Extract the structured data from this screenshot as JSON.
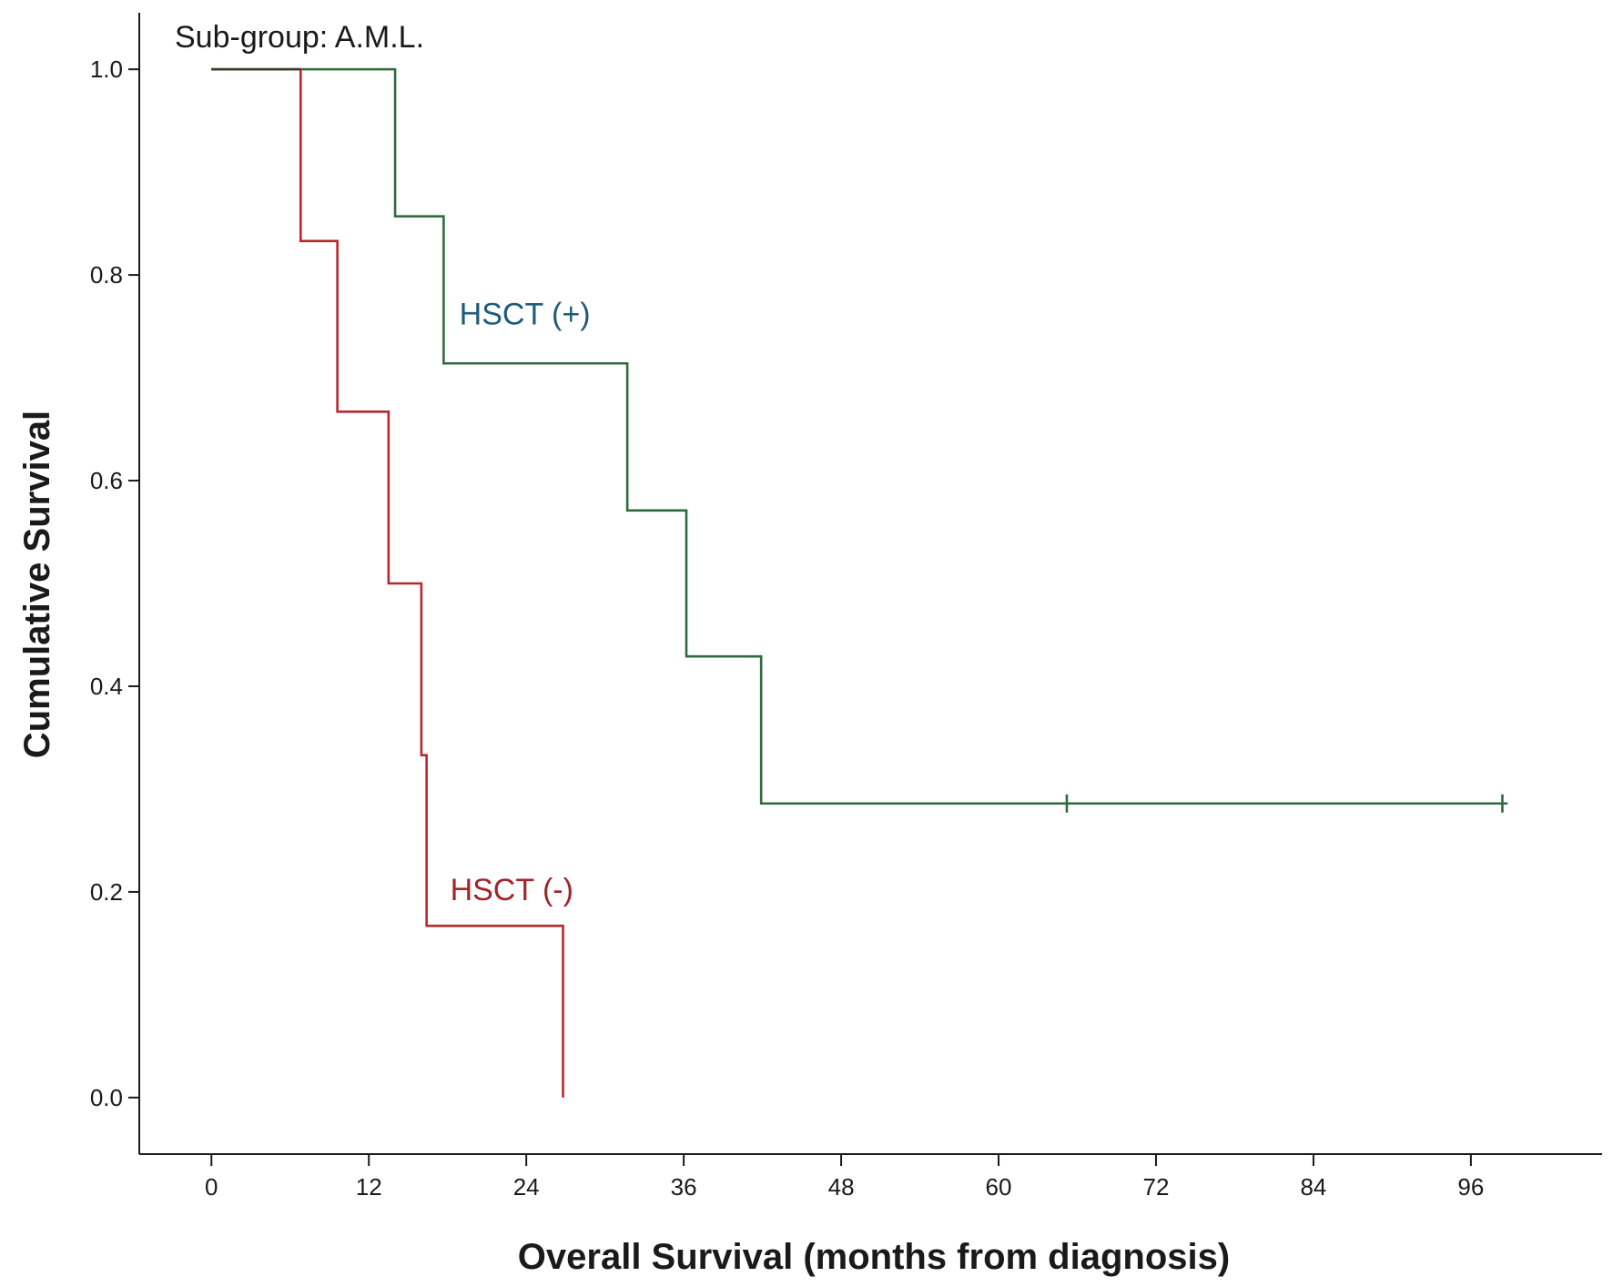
{
  "chart_data": {
    "type": "line",
    "subtitle": "Sub-group: A.M.L.",
    "xlabel": "Overall Survival (months from diagnosis)",
    "ylabel": "Cumulative Survival",
    "xlim": [
      -5.5,
      106
    ],
    "ylim": [
      -0.055,
      1.055
    ],
    "xticks": [
      0,
      12,
      24,
      36,
      48,
      60,
      72,
      84,
      96
    ],
    "yticks": [
      0.0,
      0.2,
      0.4,
      0.6,
      0.8,
      1.0
    ],
    "ytick_labels": [
      "0.0",
      "0.2",
      "0.4",
      "0.6",
      "0.8",
      "1.0"
    ],
    "grid": false,
    "series": [
      {
        "name": "HSCT (+)",
        "color": "#2e6b3e",
        "label_color": "#1f5a78",
        "steps": [
          [
            0,
            1.0
          ],
          [
            14,
            0.857
          ],
          [
            17.7,
            0.714
          ],
          [
            31.7,
            0.571
          ],
          [
            36.2,
            0.429
          ],
          [
            41.9,
            0.286
          ]
        ],
        "end_x": 98.8,
        "censored": [
          65.2,
          98.4
        ]
      },
      {
        "name": "HSCT (-)",
        "color": "#b8282f",
        "label_color": "#a0242a",
        "steps": [
          [
            0,
            1.0
          ],
          [
            6.8,
            0.833
          ],
          [
            9.6,
            0.667
          ],
          [
            13.5,
            0.5
          ],
          [
            16,
            0.333
          ],
          [
            16.4,
            0.167
          ],
          [
            26.8,
            0.0
          ]
        ],
        "end_x": 26.8,
        "censored": []
      }
    ],
    "annotations": [
      {
        "text": "HSCT (+)",
        "x": 18.9,
        "y": 0.752,
        "series": 0
      },
      {
        "text": "HSCT (-)",
        "x": 18.2,
        "y": 0.192,
        "series": 1
      }
    ]
  }
}
